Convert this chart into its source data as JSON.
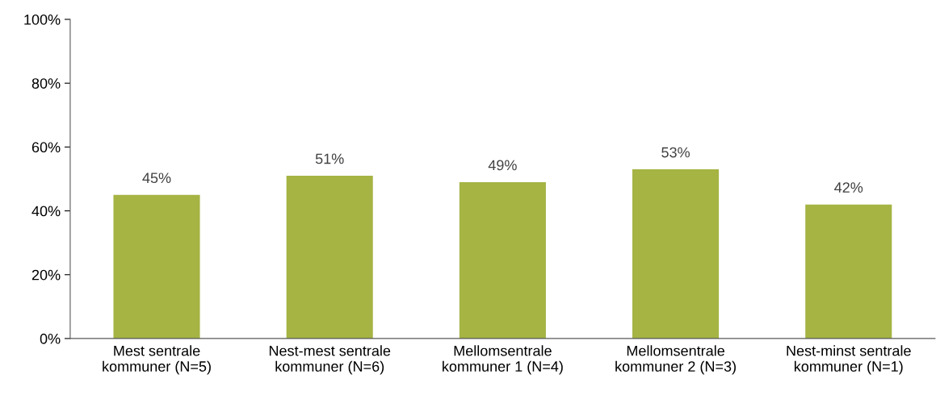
{
  "chart_data": {
    "type": "bar",
    "categories": [
      "Mest sentrale\nkommuner (N=5)",
      "Nest-mest sentrale\nkommuner (N=6)",
      "Mellomsentrale\nkommuner 1 (N=4)",
      "Mellomsentrale\nkommuner 2 (N=3)",
      "Nest-minst sentrale\nkommuner (N=1)"
    ],
    "values": [
      45,
      51,
      49,
      53,
      42
    ],
    "value_labels": [
      "45%",
      "51%",
      "49%",
      "53%",
      "42%"
    ],
    "color": "#a5b443",
    "ylim": [
      0,
      100
    ],
    "yticks": [
      {
        "value": 0,
        "label": "0%"
      },
      {
        "value": 20,
        "label": "20%"
      },
      {
        "value": 40,
        "label": "40%"
      },
      {
        "value": 60,
        "label": "60%"
      },
      {
        "value": 80,
        "label": "80%"
      },
      {
        "value": 100,
        "label": "100%"
      }
    ],
    "grid": false,
    "legend": false
  }
}
